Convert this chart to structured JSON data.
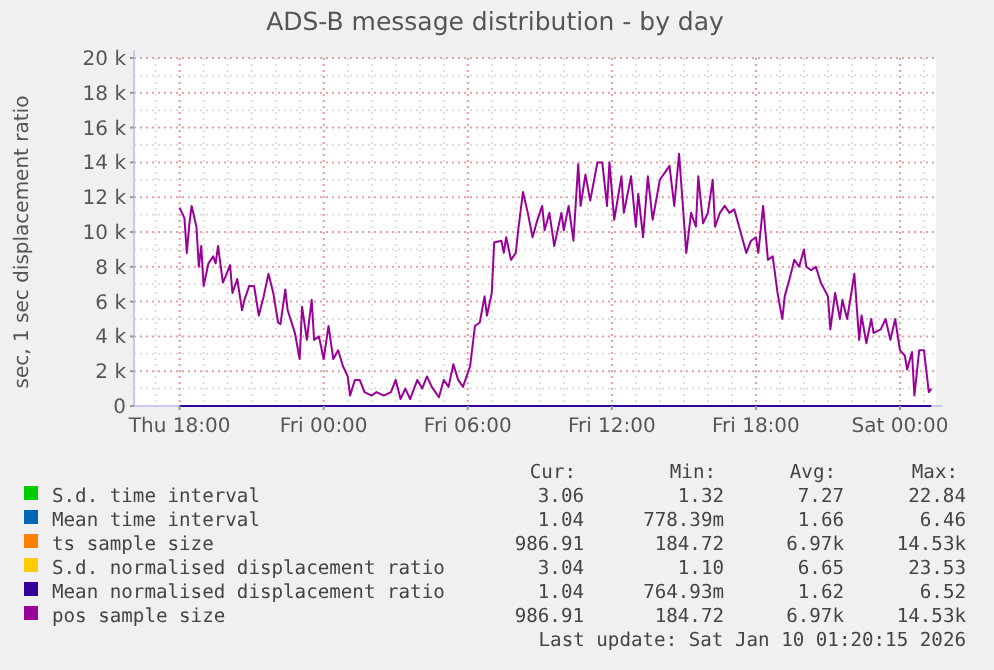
{
  "chart_data": {
    "type": "line",
    "title": "ADS-B message distribution - by day",
    "ylabel": "sec, 1 sec displacement ratio",
    "xlim": [
      "2026-01-08T16:06",
      "2026-01-10T01:30"
    ],
    "xticks": [
      {
        "value": "2026-01-08T18:00",
        "label": "Thu 18:00"
      },
      {
        "value": "2026-01-09T00:00",
        "label": "Fri 00:00"
      },
      {
        "value": "2026-01-09T06:00",
        "label": "Fri 06:00"
      },
      {
        "value": "2026-01-09T12:00",
        "label": "Fri 12:00"
      },
      {
        "value": "2026-01-09T18:00",
        "label": "Fri 18:00"
      },
      {
        "value": "2026-01-10T00:00",
        "label": "Sat 00:00"
      }
    ],
    "ylim": [
      0,
      20000
    ],
    "yticks": [
      0,
      {
        "value": 2000,
        "label": "2 k"
      },
      {
        "value": 4000,
        "label": "4 k"
      },
      {
        "value": 6000,
        "label": "6 k"
      },
      {
        "value": 8000,
        "label": "8 k"
      },
      {
        "value": 10000,
        "label": "10 k"
      },
      {
        "value": 12000,
        "label": "12 k"
      },
      {
        "value": 14000,
        "label": "14 k"
      },
      {
        "value": 16000,
        "label": "16 k"
      },
      {
        "value": 18000,
        "label": "18 k"
      },
      {
        "value": 20000,
        "label": "20 k"
      }
    ],
    "grid": true,
    "legend": "bottom",
    "marker": "none",
    "line_style": "solid",
    "x": [
      "2026-01-08T18:00",
      "2026-01-08T18:12",
      "2026-01-08T18:18",
      "2026-01-08T18:24",
      "2026-01-08T18:30",
      "2026-01-08T18:42",
      "2026-01-08T18:48",
      "2026-01-08T18:54",
      "2026-01-08T19:00",
      "2026-01-08T19:12",
      "2026-01-08T19:24",
      "2026-01-08T19:30",
      "2026-01-08T19:36",
      "2026-01-08T19:48",
      "2026-01-08T19:54",
      "2026-01-08T20:06",
      "2026-01-08T20:12",
      "2026-01-08T20:24",
      "2026-01-08T20:36",
      "2026-01-08T20:42",
      "2026-01-08T20:54",
      "2026-01-08T21:06",
      "2026-01-08T21:18",
      "2026-01-08T21:30",
      "2026-01-08T21:42",
      "2026-01-08T21:54",
      "2026-01-08T22:06",
      "2026-01-08T22:12",
      "2026-01-08T22:24",
      "2026-01-08T22:30",
      "2026-01-08T22:48",
      "2026-01-08T23:00",
      "2026-01-08T23:06",
      "2026-01-08T23:18",
      "2026-01-08T23:30",
      "2026-01-08T23:36",
      "2026-01-08T23:48",
      "2026-01-09T00:00",
      "2026-01-09T00:12",
      "2026-01-09T00:24",
      "2026-01-09T00:36",
      "2026-01-09T00:48",
      "2026-01-09T01:00",
      "2026-01-09T01:06",
      "2026-01-09T01:18",
      "2026-01-09T01:30",
      "2026-01-09T01:42",
      "2026-01-09T02:00",
      "2026-01-09T02:12",
      "2026-01-09T02:30",
      "2026-01-09T02:48",
      "2026-01-09T03:00",
      "2026-01-09T03:12",
      "2026-01-09T03:24",
      "2026-01-09T03:36",
      "2026-01-09T03:54",
      "2026-01-09T04:06",
      "2026-01-09T04:18",
      "2026-01-09T04:30",
      "2026-01-09T04:48",
      "2026-01-09T05:00",
      "2026-01-09T05:12",
      "2026-01-09T05:24",
      "2026-01-09T05:36",
      "2026-01-09T05:48",
      "2026-01-09T06:06",
      "2026-01-09T06:18",
      "2026-01-09T06:30",
      "2026-01-09T06:42",
      "2026-01-09T06:48",
      "2026-01-09T07:00",
      "2026-01-09T07:06",
      "2026-01-09T07:24",
      "2026-01-09T07:30",
      "2026-01-09T07:36",
      "2026-01-09T07:48",
      "2026-01-09T08:00",
      "2026-01-09T08:06",
      "2026-01-09T08:18",
      "2026-01-09T08:30",
      "2026-01-09T08:42",
      "2026-01-09T08:54",
      "2026-01-09T09:06",
      "2026-01-09T09:12",
      "2026-01-09T09:24",
      "2026-01-09T09:36",
      "2026-01-09T09:54",
      "2026-01-09T10:00",
      "2026-01-09T10:12",
      "2026-01-09T10:24",
      "2026-01-09T10:36",
      "2026-01-09T10:42",
      "2026-01-09T10:54",
      "2026-01-09T11:06",
      "2026-01-09T11:24",
      "2026-01-09T11:36",
      "2026-01-09T11:48",
      "2026-01-09T11:54",
      "2026-01-09T12:06",
      "2026-01-09T12:24",
      "2026-01-09T12:30",
      "2026-01-09T12:48",
      "2026-01-09T13:00",
      "2026-01-09T13:06",
      "2026-01-09T13:18",
      "2026-01-09T13:30",
      "2026-01-09T13:42",
      "2026-01-09T14:00",
      "2026-01-09T14:18",
      "2026-01-09T14:24",
      "2026-01-09T14:36",
      "2026-01-09T14:48",
      "2026-01-09T15:06",
      "2026-01-09T15:18",
      "2026-01-09T15:30",
      "2026-01-09T15:36",
      "2026-01-09T15:48",
      "2026-01-09T16:00",
      "2026-01-09T16:12",
      "2026-01-09T16:18",
      "2026-01-09T16:30",
      "2026-01-09T16:42",
      "2026-01-09T16:54",
      "2026-01-09T17:06",
      "2026-01-09T17:18",
      "2026-01-09T17:36",
      "2026-01-09T17:48",
      "2026-01-09T18:00",
      "2026-01-09T18:06",
      "2026-01-09T18:18",
      "2026-01-09T18:30",
      "2026-01-09T18:42",
      "2026-01-09T18:54",
      "2026-01-09T19:06",
      "2026-01-09T19:12",
      "2026-01-09T19:24",
      "2026-01-09T19:36",
      "2026-01-09T19:48",
      "2026-01-09T20:00",
      "2026-01-09T20:06",
      "2026-01-09T20:18",
      "2026-01-09T20:30",
      "2026-01-09T20:42",
      "2026-01-09T21:00",
      "2026-01-09T21:06",
      "2026-01-09T21:18",
      "2026-01-09T21:30",
      "2026-01-09T21:36",
      "2026-01-09T21:48",
      "2026-01-09T22:06",
      "2026-01-09T22:18",
      "2026-01-09T22:24",
      "2026-01-09T22:36",
      "2026-01-09T22:48",
      "2026-01-09T22:54",
      "2026-01-09T23:12",
      "2026-01-09T23:24",
      "2026-01-09T23:36",
      "2026-01-09T23:48",
      "2026-01-10T00:00",
      "2026-01-10T00:12",
      "2026-01-10T00:18",
      "2026-01-10T00:30",
      "2026-01-10T00:36",
      "2026-01-10T00:48",
      "2026-01-10T01:00",
      "2026-01-10T01:12",
      "2026-01-10T01:18"
    ],
    "series": [
      {
        "name": "S.d. time interval",
        "color": "#00cc00",
        "values": [
          null,
          null,
          null,
          null,
          null,
          null,
          null,
          null,
          null,
          null,
          null,
          null,
          null,
          null,
          null,
          null,
          null,
          null,
          null,
          null,
          null,
          null,
          null,
          null,
          null,
          null,
          null,
          null,
          null,
          null,
          null,
          null,
          null,
          null,
          null,
          null,
          null,
          null,
          null,
          null,
          null,
          null,
          null,
          null,
          null,
          null,
          null,
          null,
          null,
          null,
          null,
          null,
          null,
          null,
          null,
          null,
          null,
          null,
          null,
          null,
          null,
          null,
          null,
          null,
          null,
          null,
          null,
          null,
          null,
          null,
          null,
          null,
          null,
          null,
          null,
          null,
          null,
          null,
          null,
          null,
          null,
          null,
          null,
          null,
          null,
          null,
          null,
          null,
          null,
          null,
          null,
          null,
          null,
          null,
          null,
          null,
          null,
          null,
          null,
          null,
          null,
          null,
          null,
          null,
          null,
          null,
          null,
          null,
          null,
          null,
          null,
          null,
          null,
          null,
          null,
          null,
          null,
          null,
          null,
          null,
          null,
          null,
          null,
          null,
          null,
          null,
          null,
          null,
          null,
          null,
          null,
          null,
          null,
          null,
          null,
          null,
          null,
          null,
          null,
          null,
          null,
          null,
          null,
          null,
          null,
          null,
          null,
          null,
          null,
          null,
          null,
          null,
          null,
          null,
          null,
          null,
          null,
          null,
          null,
          null,
          null,
          null,
          null,
          null,
          null,
          null,
          null,
          null
        ]
      },
      {
        "name": "Mean time interval",
        "color": "#0066b3",
        "values": [
          null,
          null,
          null,
          null,
          null,
          null,
          null,
          null,
          null,
          null,
          null,
          null,
          null,
          null,
          null,
          null,
          null,
          null,
          null,
          null,
          null,
          null,
          null,
          null,
          null,
          null,
          null,
          null,
          null,
          null,
          null,
          null,
          null,
          null,
          null,
          null,
          null,
          null,
          null,
          null,
          null,
          null,
          null,
          null,
          null,
          null,
          null,
          null,
          null,
          null,
          null,
          null,
          null,
          null,
          null,
          null,
          null,
          null,
          null,
          null,
          null,
          null,
          null,
          null,
          null,
          null,
          null,
          null,
          null,
          null,
          null,
          null,
          null,
          null,
          null,
          null,
          null,
          null,
          null,
          null,
          null,
          null,
          null,
          null,
          null,
          null,
          null,
          null,
          null,
          null,
          null,
          null,
          null,
          null,
          null,
          null,
          null,
          null,
          null,
          null,
          null,
          null,
          null,
          null,
          null,
          null,
          null,
          null,
          null,
          null,
          null,
          null,
          null,
          null,
          null,
          null,
          null,
          null,
          null,
          null,
          null,
          null,
          null,
          null,
          null,
          null,
          null,
          null,
          null,
          null,
          null,
          null,
          null,
          null,
          null,
          null,
          null,
          null,
          null,
          null,
          null,
          null,
          null,
          null,
          null,
          null,
          null,
          null,
          null,
          null,
          null,
          null,
          null,
          null,
          null,
          null,
          null,
          null,
          null,
          null,
          null,
          null,
          null,
          null,
          null,
          null,
          null,
          null
        ]
      },
      {
        "name": "ts sample size",
        "color": "#ff8000",
        "values": [
          null,
          null,
          null,
          null,
          null,
          null,
          null,
          null,
          null,
          null,
          null,
          null,
          null,
          null,
          null,
          null,
          null,
          null,
          null,
          null,
          null,
          null,
          null,
          null,
          null,
          null,
          null,
          null,
          null,
          null,
          null,
          null,
          null,
          null,
          null,
          null,
          null,
          null,
          null,
          null,
          null,
          null,
          null,
          null,
          null,
          null,
          null,
          null,
          null,
          null,
          null,
          null,
          null,
          null,
          null,
          null,
          null,
          null,
          null,
          null,
          null,
          null,
          null,
          null,
          null,
          null,
          null,
          null,
          null,
          null,
          null,
          null,
          null,
          null,
          null,
          null,
          null,
          null,
          null,
          null,
          null,
          null,
          null,
          null,
          null,
          null,
          null,
          null,
          null,
          null,
          null,
          null,
          null,
          null,
          null,
          null,
          null,
          null,
          null,
          null,
          null,
          null,
          null,
          null,
          null,
          null,
          null,
          null,
          null,
          null,
          null,
          null,
          null,
          null,
          null,
          null,
          null,
          null,
          null,
          null,
          null,
          null,
          null,
          null,
          null,
          null,
          null,
          null,
          null,
          null,
          null,
          null,
          null,
          null,
          null,
          null,
          null,
          null,
          null,
          null,
          null,
          null,
          null,
          null,
          null,
          null,
          null,
          null,
          null,
          null,
          null,
          null,
          null,
          null,
          null,
          null,
          null,
          null,
          null,
          null,
          null,
          null,
          null,
          null,
          null,
          null,
          null,
          null
        ]
      },
      {
        "name": "S.d. normalised displacement ratio",
        "color": "#ffcc00",
        "values": [
          null,
          null,
          null,
          null,
          null,
          null,
          null,
          null,
          null,
          null,
          null,
          null,
          null,
          null,
          null,
          null,
          null,
          null,
          null,
          null,
          null,
          null,
          null,
          null,
          null,
          null,
          null,
          null,
          null,
          null,
          null,
          null,
          null,
          null,
          null,
          null,
          null,
          null,
          null,
          null,
          null,
          null,
          null,
          null,
          null,
          null,
          null,
          null,
          null,
          null,
          null,
          null,
          null,
          null,
          null,
          null,
          null,
          null,
          null,
          null,
          null,
          null,
          null,
          null,
          null,
          null,
          null,
          null,
          null,
          null,
          null,
          null,
          null,
          null,
          null,
          null,
          null,
          null,
          null,
          null,
          null,
          null,
          null,
          null,
          null,
          null,
          null,
          null,
          null,
          null,
          null,
          null,
          null,
          null,
          null,
          null,
          null,
          null,
          null,
          null,
          null,
          null,
          null,
          null,
          null,
          null,
          null,
          null,
          null,
          null,
          null,
          null,
          null,
          null,
          null,
          null,
          null,
          null,
          null,
          null,
          null,
          null,
          null,
          null,
          null,
          null,
          null,
          null,
          null,
          null,
          null,
          null,
          null,
          null,
          null,
          null,
          null,
          null,
          null,
          null,
          null,
          null,
          null,
          null,
          null,
          null,
          null,
          null,
          null,
          null,
          null,
          null,
          null,
          null,
          null,
          null,
          null,
          null,
          null,
          null,
          null,
          null,
          null,
          null,
          null,
          null,
          null,
          null
        ]
      },
      {
        "name": "Mean normalised displacement ratio",
        "color": "#330099",
        "x": [
          "2026-01-08T18:00",
          "2026-01-10T01:18"
        ],
        "values": [
          0,
          0
        ]
      },
      {
        "name": "pos sample size",
        "color": "#990099",
        "values": [
          11400,
          10800,
          8800,
          10400,
          11500,
          10300,
          8000,
          9200,
          6900,
          8200,
          8600,
          8200,
          9200,
          7100,
          7400,
          8100,
          6500,
          7300,
          5500,
          6100,
          6900,
          6900,
          5200,
          6300,
          7600,
          6500,
          4800,
          4700,
          6700,
          5500,
          4200,
          2700,
          5700,
          3800,
          6100,
          3800,
          4000,
          2700,
          4600,
          2700,
          3200,
          2300,
          1700,
          600,
          1500,
          1500,
          800,
          600,
          800,
          600,
          800,
          1500,
          400,
          1000,
          400,
          1500,
          1000,
          1700,
          1100,
          500,
          1500,
          1100,
          2400,
          1500,
          1100,
          2300,
          4600,
          4800,
          6300,
          5200,
          6500,
          9400,
          9500,
          8800,
          9700,
          8400,
          8800,
          10100,
          12300,
          11100,
          9700,
          10700,
          11500,
          10100,
          11100,
          9200,
          11100,
          10100,
          11500,
          9500,
          13900,
          11500,
          13300,
          11800,
          14000,
          14000,
          11500,
          14000,
          10700,
          13200,
          11100,
          13200,
          10300,
          12200,
          9700,
          13200,
          10700,
          13000,
          13600,
          13800,
          11500,
          14500,
          8800,
          11100,
          10300,
          13200,
          10500,
          11100,
          13000,
          10300,
          11100,
          11500,
          11100,
          11300,
          10300,
          8800,
          9500,
          9700,
          8800,
          11500,
          8400,
          8600,
          6500,
          5000,
          6300,
          7300,
          8400,
          8000,
          9000,
          8000,
          7800,
          8000,
          7100,
          6300,
          4400,
          6500,
          5000,
          6100,
          5000,
          7600,
          3800,
          5200,
          3600,
          5000,
          4200,
          4400,
          5000,
          3800,
          5000,
          3200,
          2900,
          2100,
          3100,
          600,
          3200,
          3200,
          800,
          1000
        ]
      }
    ],
    "annotations": [
      "Cur:",
      "Min:",
      "Avg:",
      "Max:",
      "3.06",
      "1.32",
      "7.27",
      "22.84",
      "1.04",
      "778.39m",
      "1.66",
      "6.46",
      "986.91",
      "184.72",
      "6.97k",
      "14.53k",
      "3.04",
      "1.10",
      "6.65",
      "23.53",
      "1.04",
      "764.93m",
      "1.62",
      "6.52",
      "986.91",
      "184.72",
      "6.97k",
      "14.53k",
      "Last update: Sat Jan 10 01:20:15 2026"
    ]
  }
}
